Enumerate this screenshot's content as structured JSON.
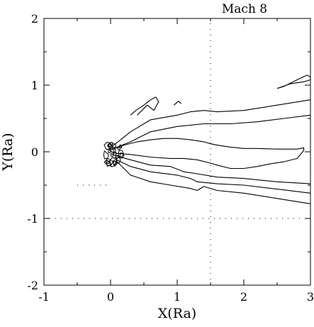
{
  "chart_data": {
    "type": "contour",
    "title": "Mach 8",
    "xlabel": "X(Ra)",
    "ylabel": "Y(Ra)",
    "xlim": [
      -1,
      3
    ],
    "ylim": [
      -2,
      2
    ],
    "xticks": [
      -1,
      0,
      1,
      2,
      3
    ],
    "yticks": [
      -2,
      -1,
      0,
      1,
      2
    ],
    "xtick_labels": [
      "-1",
      "0",
      "1",
      "2",
      "3"
    ],
    "ytick_labels": [
      "-2",
      "-1",
      "0",
      "1",
      "2"
    ],
    "minor_tick_step": 0.5,
    "grid": false,
    "reference_lines": [
      {
        "orientation": "vertical",
        "value": 1.5,
        "style": "dotted",
        "from": -2,
        "to": 2
      },
      {
        "orientation": "horizontal",
        "value": -1,
        "style": "dotted",
        "from": -1,
        "to": 3
      },
      {
        "orientation": "horizontal",
        "value": -0.5,
        "style": "dotted",
        "from": -0.5,
        "to": 0
      }
    ],
    "series": [
      {
        "points": [
          [
            -0.02,
            0.02
          ],
          [
            0.2,
            0.1
          ],
          [
            0.4,
            0.15
          ],
          [
            0.6,
            0.18
          ],
          [
            0.8,
            0.2
          ],
          [
            1.0,
            0.2
          ],
          [
            1.2,
            0.18
          ],
          [
            1.4,
            0.15
          ],
          [
            1.5,
            0.12
          ],
          [
            1.6,
            0.1
          ],
          [
            1.8,
            0.07
          ],
          [
            2.0,
            0.05
          ],
          [
            2.2,
            0.05
          ],
          [
            2.5,
            0.04
          ],
          [
            2.8,
            0.04
          ],
          [
            2.9,
            0.06
          ],
          [
            2.9,
            0.02
          ],
          [
            2.8,
            -0.1
          ],
          [
            2.6,
            -0.15
          ],
          [
            2.4,
            -0.18
          ],
          [
            2.2,
            -0.22
          ],
          [
            2.0,
            -0.25
          ],
          [
            1.8,
            -0.25
          ],
          [
            1.6,
            -0.2
          ],
          [
            1.5,
            -0.17
          ],
          [
            1.3,
            -0.12
          ],
          [
            1.1,
            -0.1
          ],
          [
            0.9,
            -0.1
          ],
          [
            0.6,
            -0.08
          ],
          [
            0.3,
            -0.04
          ],
          [
            0.05,
            -0.02
          ],
          [
            -0.02,
            0.02
          ]
        ]
      },
      {
        "points": [
          [
            0.05,
            0.1
          ],
          [
            0.3,
            0.3
          ],
          [
            0.6,
            0.48
          ],
          [
            1.0,
            0.55
          ],
          [
            1.2,
            0.6
          ],
          [
            1.4,
            0.62
          ],
          [
            1.6,
            0.6
          ],
          [
            2.0,
            0.62
          ],
          [
            2.5,
            0.7
          ],
          [
            3.0,
            0.78
          ]
        ]
      },
      {
        "points": [
          [
            0.05,
            -0.1
          ],
          [
            0.3,
            -0.22
          ],
          [
            0.6,
            -0.3
          ],
          [
            1.0,
            -0.35
          ],
          [
            1.2,
            -0.4
          ],
          [
            1.3,
            -0.45
          ],
          [
            1.6,
            -0.48
          ],
          [
            2.0,
            -0.5
          ],
          [
            2.5,
            -0.56
          ],
          [
            3.0,
            -0.62
          ]
        ]
      },
      {
        "points": [
          [
            0.05,
            0.05
          ],
          [
            0.3,
            0.15
          ],
          [
            0.6,
            0.3
          ],
          [
            1.0,
            0.38
          ],
          [
            1.4,
            0.42
          ],
          [
            1.8,
            0.42
          ],
          [
            2.2,
            0.45
          ],
          [
            2.6,
            0.5
          ],
          [
            3.0,
            0.55
          ]
        ]
      },
      {
        "points": [
          [
            0.05,
            -0.05
          ],
          [
            0.3,
            -0.12
          ],
          [
            0.6,
            -0.2
          ],
          [
            0.9,
            -0.22
          ],
          [
            1.1,
            -0.3
          ],
          [
            1.3,
            -0.33
          ],
          [
            1.6,
            -0.38
          ],
          [
            2.0,
            -0.4
          ],
          [
            2.5,
            -0.45
          ],
          [
            3.0,
            -0.48
          ]
        ]
      },
      {
        "points": [
          [
            0.1,
            -0.15
          ],
          [
            0.3,
            -0.35
          ],
          [
            0.6,
            -0.45
          ],
          [
            0.9,
            -0.5
          ],
          [
            1.2,
            -0.55
          ],
          [
            1.3,
            -0.58
          ],
          [
            1.4,
            -0.52
          ],
          [
            1.6,
            -0.58
          ],
          [
            2.0,
            -0.62
          ],
          [
            2.5,
            -0.7
          ],
          [
            3.0,
            -0.78
          ]
        ]
      },
      {
        "points": [
          [
            2.5,
            0.95
          ],
          [
            2.7,
            1.02
          ],
          [
            2.9,
            1.05
          ],
          [
            3.0,
            1.08
          ],
          [
            3.0,
            1.12
          ],
          [
            2.95,
            1.15
          ],
          [
            2.8,
            1.08
          ],
          [
            2.6,
            0.98
          ],
          [
            2.5,
            0.95
          ]
        ]
      },
      {
        "points": [
          [
            0.4,
            0.55
          ],
          [
            0.55,
            0.7
          ],
          [
            0.65,
            0.62
          ],
          [
            0.72,
            0.75
          ],
          [
            0.68,
            0.82
          ],
          [
            0.6,
            0.78
          ],
          [
            0.5,
            0.7
          ],
          [
            0.38,
            0.62
          ],
          [
            0.3,
            0.55
          ]
        ]
      },
      {
        "points": [
          [
            0.95,
            0.7
          ],
          [
            1.02,
            0.76
          ],
          [
            1.06,
            0.72
          ]
        ]
      }
    ],
    "legend": "none"
  }
}
